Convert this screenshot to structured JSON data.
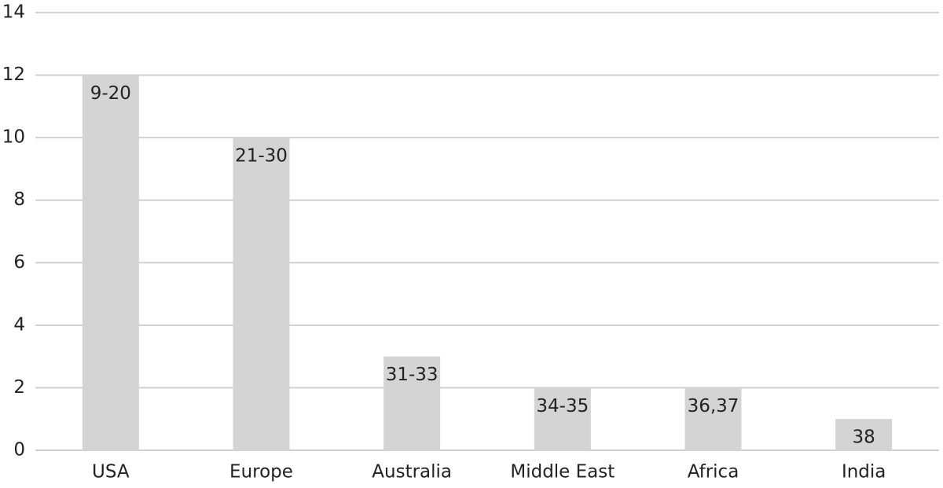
{
  "chart_data": {
    "type": "bar",
    "categories": [
      "USA",
      "Europe",
      "Australia",
      "Middle East",
      "Africa",
      "India"
    ],
    "values": [
      12,
      10,
      3,
      2,
      2,
      1
    ],
    "annotations": [
      "9-20",
      "21-30",
      "31-33",
      "34-35",
      "36,37",
      "38"
    ],
    "color": "#d4d4d4",
    "ylim": [
      0,
      14
    ],
    "yticks": [
      0,
      2,
      4,
      6,
      8,
      10,
      12,
      14
    ],
    "grid": true
  }
}
